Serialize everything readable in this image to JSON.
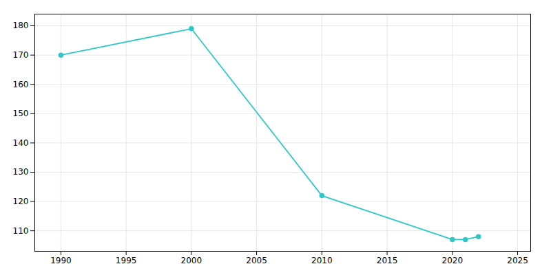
{
  "chart_data": {
    "type": "line",
    "x": [
      1990,
      2000,
      2010,
      2020,
      2021,
      2022
    ],
    "values": [
      170,
      179,
      122,
      107,
      107,
      108
    ],
    "color": "#2ec8c8",
    "marker": "circle",
    "xlim": [
      1988,
      2026
    ],
    "ylim": [
      103,
      184
    ],
    "xticks": [
      1990,
      1995,
      2000,
      2005,
      2010,
      2015,
      2020,
      2025
    ],
    "yticks": [
      110,
      120,
      130,
      140,
      150,
      160,
      170,
      180
    ],
    "grid": true
  }
}
